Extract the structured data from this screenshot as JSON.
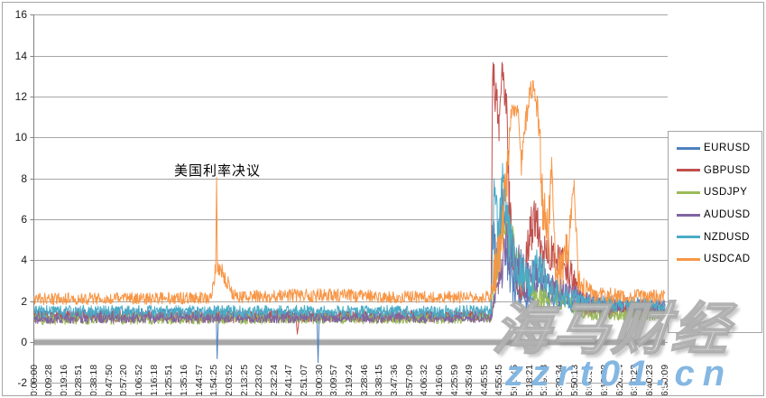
{
  "watermark": {
    "brand": "海马财经",
    "url": "zzrt01.cn",
    "url_color": "#7db3e0"
  },
  "annotation": {
    "text": "美国利率决议"
  },
  "chart_data": {
    "type": "line",
    "title": "",
    "grid": "horizontal",
    "legend_position": "right",
    "y_axis": {
      "min": -2,
      "max": 16,
      "step": 2,
      "tick_labels": [
        "16",
        "14",
        "12",
        "10",
        "8",
        "6",
        "4",
        "2",
        "0",
        "-2"
      ]
    },
    "x_axis": {
      "tick_labels": [
        "0:00:00",
        "0:09:28",
        "0:19:16",
        "0:28:51",
        "0:38:18",
        "0:47:50",
        "0:57:20",
        "1:06:52",
        "1:16:18",
        "1:25:51",
        "1:35:16",
        "1:44:57",
        "1:54:25",
        "2:03:52",
        "2:13:25",
        "2:23:02",
        "2:32:24",
        "2:41:47",
        "2:51:07",
        "3:00:30",
        "3:09:57",
        "3:19:24",
        "3:28:46",
        "3:38:15",
        "3:47:36",
        "3:57:09",
        "4:06:32",
        "4:16:06",
        "4:25:59",
        "4:35:49",
        "4:45:55",
        "4:55:45",
        "5:07:45",
        "5:18:21",
        "5:29:53",
        "5:39:34",
        "5:50:13",
        "6:00:37",
        "6:10:22",
        "6:20:24",
        "6:30:22",
        "6:40:23",
        "6:50:09"
      ]
    },
    "zero_band": {
      "value": 0,
      "color": "#a8a8a8"
    },
    "encoding": "series keypoints are [x_category_index, value, tick_noise_amplitude]; dense tick noise fills between keypoints",
    "series": [
      {
        "name": "EURUSD",
        "color": "#4F81BD",
        "keypoints": [
          [
            0,
            1.35,
            0.3
          ],
          [
            11.9,
            1.35,
            0.3
          ],
          [
            12.12,
            1.3,
            0.25
          ],
          [
            12.18,
            -0.85,
            0.05
          ],
          [
            12.26,
            1.3,
            0.25
          ],
          [
            17,
            1.3,
            0.28
          ],
          [
            18.82,
            1.25,
            0.25
          ],
          [
            18.9,
            -1.0,
            0.05
          ],
          [
            18.98,
            1.25,
            0.25
          ],
          [
            30.4,
            1.35,
            0.3
          ],
          [
            30.5,
            5.5,
            1.2
          ],
          [
            30.8,
            4.0,
            1.2
          ],
          [
            31.2,
            6.8,
            0.8
          ],
          [
            31.5,
            4.0,
            1.2
          ],
          [
            32,
            2.6,
            0.9
          ],
          [
            33,
            2.2,
            0.7
          ],
          [
            33.6,
            2.8,
            0.9
          ],
          [
            34.3,
            2.2,
            0.6
          ],
          [
            35.2,
            1.9,
            0.5
          ],
          [
            36.2,
            1.8,
            0.4
          ],
          [
            37,
            1.7,
            0.35
          ],
          [
            42,
            1.6,
            0.3
          ]
        ]
      },
      {
        "name": "GBPUSD",
        "color": "#C0504D",
        "keypoints": [
          [
            0,
            1.25,
            0.3
          ],
          [
            17.4,
            1.25,
            0.3
          ],
          [
            17.52,
            0.45,
            0.15
          ],
          [
            17.64,
            1.25,
            0.3
          ],
          [
            30.42,
            1.3,
            0.3
          ],
          [
            30.52,
            13.2,
            0.5
          ],
          [
            30.7,
            12.3,
            1.2
          ],
          [
            30.95,
            10.6,
            0.8
          ],
          [
            31.15,
            13.3,
            0.4
          ],
          [
            31.4,
            12.0,
            1.2
          ],
          [
            31.65,
            6.5,
            1.5
          ],
          [
            32,
            3.6,
            1.2
          ],
          [
            32.5,
            2.6,
            0.9
          ],
          [
            33,
            5.0,
            1.5
          ],
          [
            33.4,
            6.3,
            1.0
          ],
          [
            33.9,
            4.2,
            1.2
          ],
          [
            34.5,
            4.4,
            0.8
          ],
          [
            35.2,
            4.2,
            0.9
          ],
          [
            35.8,
            3.0,
            0.9
          ],
          [
            36.4,
            2.0,
            0.6
          ],
          [
            37.2,
            1.6,
            0.4
          ],
          [
            42,
            1.5,
            0.35
          ]
        ]
      },
      {
        "name": "USDJPY",
        "color": "#9BBB59",
        "keypoints": [
          [
            0,
            1.1,
            0.25
          ],
          [
            30.45,
            1.15,
            0.25
          ],
          [
            30.7,
            3.2,
            1.0
          ],
          [
            31.2,
            6.0,
            0.9
          ],
          [
            31.7,
            5.2,
            1.3
          ],
          [
            32.3,
            3.4,
            1.1
          ],
          [
            33,
            2.7,
            0.9
          ],
          [
            33.8,
            2.1,
            0.6
          ],
          [
            34.5,
            2.5,
            0.7
          ],
          [
            35.4,
            1.9,
            0.5
          ],
          [
            36.3,
            1.6,
            0.4
          ],
          [
            37.2,
            1.35,
            0.3
          ],
          [
            42,
            1.3,
            0.28
          ]
        ]
      },
      {
        "name": "AUDUSD",
        "color": "#8064A2",
        "keypoints": [
          [
            0,
            1.15,
            0.25
          ],
          [
            30.45,
            1.2,
            0.25
          ],
          [
            30.9,
            3.0,
            0.9
          ],
          [
            31.5,
            4.6,
            1.3
          ],
          [
            32.1,
            3.8,
            1.3
          ],
          [
            32.8,
            2.9,
            1.0
          ],
          [
            33.5,
            3.4,
            1.0
          ],
          [
            34.2,
            2.6,
            0.8
          ],
          [
            35,
            2.5,
            0.7
          ],
          [
            36,
            2.2,
            0.55
          ],
          [
            37,
            1.95,
            0.45
          ],
          [
            39.5,
            1.85,
            0.38
          ],
          [
            42,
            1.75,
            0.33
          ]
        ]
      },
      {
        "name": "NZDUSD",
        "color": "#4BACC6",
        "keypoints": [
          [
            0,
            1.5,
            0.3
          ],
          [
            30.42,
            1.5,
            0.3
          ],
          [
            30.62,
            7.6,
            0.7
          ],
          [
            30.9,
            5.2,
            1.5
          ],
          [
            31.2,
            8.0,
            0.9
          ],
          [
            31.6,
            5.0,
            1.4
          ],
          [
            32.1,
            3.6,
            1.1
          ],
          [
            32.9,
            3.0,
            1.0
          ],
          [
            33.7,
            3.8,
            1.0
          ],
          [
            34.4,
            2.6,
            0.8
          ],
          [
            35.3,
            2.2,
            0.6
          ],
          [
            36.3,
            2.0,
            0.5
          ],
          [
            37.2,
            1.85,
            0.4
          ],
          [
            42,
            1.8,
            0.35
          ]
        ]
      },
      {
        "name": "USDCAD",
        "color": "#F79646",
        "keypoints": [
          [
            0,
            2.1,
            0.3
          ],
          [
            11.8,
            2.15,
            0.3
          ],
          [
            11.95,
            3.1,
            0.45
          ],
          [
            12.08,
            3.5,
            0.4
          ],
          [
            12.14,
            8.0,
            0.06
          ],
          [
            12.2,
            3.7,
            0.45
          ],
          [
            12.7,
            3.2,
            0.45
          ],
          [
            13.1,
            2.5,
            0.35
          ],
          [
            13.5,
            2.2,
            0.3
          ],
          [
            19,
            2.3,
            0.35
          ],
          [
            24,
            2.2,
            0.3
          ],
          [
            30.42,
            2.2,
            0.3
          ],
          [
            30.6,
            3.2,
            1.0
          ],
          [
            31,
            4.2,
            1.5
          ],
          [
            31.45,
            7.5,
            2.0
          ],
          [
            31.75,
            11.3,
            0.35
          ],
          [
            32.25,
            11.3,
            0.3
          ],
          [
            32.45,
            8.6,
            0.8
          ],
          [
            32.75,
            11.0,
            1.0
          ],
          [
            33,
            12.3,
            0.5
          ],
          [
            33.35,
            12.2,
            0.6
          ],
          [
            33.6,
            11.0,
            1.0
          ],
          [
            33.85,
            6.5,
            1.5
          ],
          [
            34.2,
            5.0,
            1.5
          ],
          [
            34.45,
            8.7,
            0.4
          ],
          [
            34.7,
            4.0,
            1.2
          ],
          [
            35.1,
            3.3,
            1.0
          ],
          [
            35.55,
            4.5,
            1.3
          ],
          [
            35.95,
            7.75,
            0.25
          ],
          [
            36.2,
            3.4,
            1.0
          ],
          [
            36.6,
            2.6,
            0.6
          ],
          [
            37.2,
            2.3,
            0.4
          ],
          [
            42,
            2.2,
            0.33
          ]
        ]
      }
    ]
  }
}
